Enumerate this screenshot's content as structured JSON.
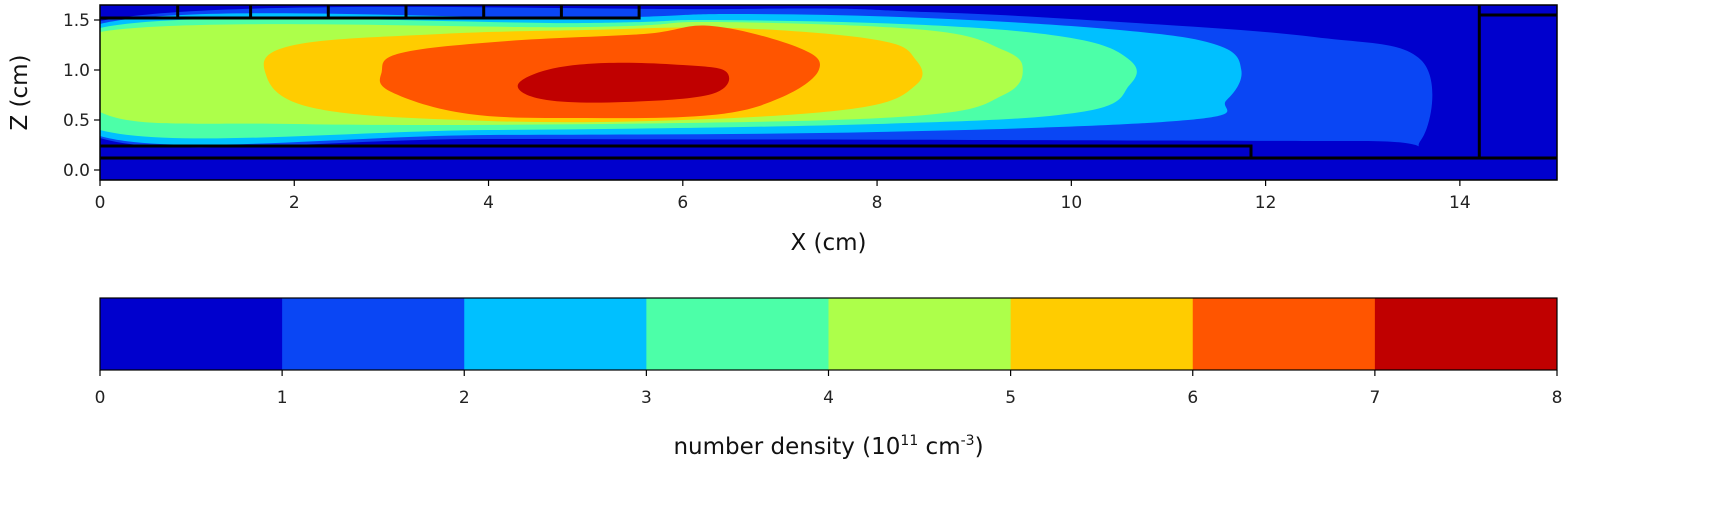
{
  "chart_data": [
    {
      "type": "heatmap",
      "subtype": "filled-contour",
      "xlabel": "X (cm)",
      "ylabel": "Z (cm)",
      "xlim": [
        0,
        15
      ],
      "ylim": [
        -0.1,
        1.65
      ],
      "xticks": [
        0,
        2,
        4,
        6,
        8,
        10,
        12,
        14
      ],
      "xtick_labels": [
        "0",
        "2",
        "4",
        "6",
        "8",
        "10",
        "12",
        "14"
      ],
      "yticks": [
        0.0,
        0.5,
        1.0,
        1.5
      ],
      "ytick_labels": [
        "0.0",
        "0.5",
        "1.0",
        "1.5"
      ],
      "grid": false,
      "background_level_color": "#0000cd",
      "contour_levels": [
        {
          "range": [
            1,
            2
          ],
          "color": "#0a46f4",
          "outline": [
            [
              0,
              1.49
            ],
            [
              6.5,
              1.61
            ],
            [
              8.5,
              1.58
            ],
            [
              10.5,
              1.48
            ],
            [
              12.5,
              1.33
            ],
            [
              13.6,
              1.1
            ],
            [
              13.6,
              0.3
            ],
            [
              13.0,
              0.29
            ],
            [
              9.0,
              0.3
            ],
            [
              4.0,
              0.31
            ],
            [
              0,
              0.32
            ]
          ]
        },
        {
          "range": [
            2,
            3
          ],
          "color": "#00c0ff",
          "outline": [
            [
              0,
              1.46
            ],
            [
              5.0,
              1.52
            ],
            [
              6.5,
              1.56
            ],
            [
              8.5,
              1.52
            ],
            [
              10.5,
              1.4
            ],
            [
              11.5,
              1.25
            ],
            [
              11.75,
              1.0
            ],
            [
              11.6,
              0.7
            ],
            [
              11.2,
              0.5
            ],
            [
              8.0,
              0.38
            ],
            [
              4.0,
              0.35
            ],
            [
              0,
              0.34
            ]
          ]
        },
        {
          "range": [
            3,
            4
          ],
          "color": "#4cffa8",
          "outline": [
            [
              0,
              1.42
            ],
            [
              5.0,
              1.47
            ],
            [
              6.3,
              1.5
            ],
            [
              8.5,
              1.45
            ],
            [
              10.0,
              1.32
            ],
            [
              10.6,
              1.1
            ],
            [
              10.6,
              0.85
            ],
            [
              10.1,
              0.58
            ],
            [
              8.0,
              0.46
            ],
            [
              4.0,
              0.4
            ],
            [
              0,
              0.4
            ]
          ]
        },
        {
          "range": [
            4,
            5
          ],
          "color": "#adff4a",
          "outline": [
            [
              0,
              1.38
            ],
            [
              5.0,
              1.43
            ],
            [
              6.3,
              1.48
            ],
            [
              8.5,
              1.4
            ],
            [
              9.3,
              1.2
            ],
            [
              9.5,
              1.0
            ],
            [
              9.3,
              0.75
            ],
            [
              8.5,
              0.55
            ],
            [
              6.0,
              0.47
            ],
            [
              2.0,
              0.46
            ],
            [
              0,
              0.58
            ]
          ]
        },
        {
          "range": [
            5,
            6
          ],
          "color": "#ffcc00",
          "outline": [
            [
              1.7,
              0.98
            ],
            [
              2.0,
              1.25
            ],
            [
              3.5,
              1.36
            ],
            [
              5.0,
              1.4
            ],
            [
              6.5,
              1.42
            ],
            [
              8.0,
              1.3
            ],
            [
              8.4,
              1.1
            ],
            [
              8.4,
              0.85
            ],
            [
              7.8,
              0.62
            ],
            [
              6.0,
              0.5
            ],
            [
              4.0,
              0.49
            ],
            [
              2.2,
              0.62
            ]
          ]
        },
        {
          "range": [
            6,
            7
          ],
          "color": "#ff5500",
          "outline": [
            [
              2.9,
              0.98
            ],
            [
              3.1,
              1.17
            ],
            [
              4.2,
              1.29
            ],
            [
              5.6,
              1.36
            ],
            [
              6.3,
              1.44
            ],
            [
              7.2,
              1.22
            ],
            [
              7.4,
              1.0
            ],
            [
              7.0,
              0.72
            ],
            [
              6.3,
              0.55
            ],
            [
              5.0,
              0.52
            ],
            [
              3.8,
              0.56
            ],
            [
              3.0,
              0.78
            ]
          ]
        },
        {
          "range": [
            7,
            8
          ],
          "color": "#c00000",
          "outline": [
            [
              4.3,
              0.84
            ],
            [
              4.6,
              1.0
            ],
            [
              5.2,
              1.07
            ],
            [
              6.0,
              1.05
            ],
            [
              6.45,
              0.98
            ],
            [
              6.3,
              0.76
            ],
            [
              5.4,
              0.68
            ],
            [
              4.6,
              0.7
            ]
          ]
        }
      ],
      "geometry_outlines": [
        [
          [
            0,
            1.52
          ],
          [
            5.55,
            1.52
          ],
          [
            5.55,
            1.65
          ]
        ],
        [
          [
            0.8,
            1.52
          ],
          [
            0.8,
            1.65
          ]
        ],
        [
          [
            1.55,
            1.52
          ],
          [
            1.55,
            1.65
          ]
        ],
        [
          [
            2.35,
            1.52
          ],
          [
            2.35,
            1.65
          ]
        ],
        [
          [
            3.15,
            1.52
          ],
          [
            3.15,
            1.65
          ]
        ],
        [
          [
            3.95,
            1.52
          ],
          [
            3.95,
            1.65
          ]
        ],
        [
          [
            4.75,
            1.52
          ],
          [
            4.75,
            1.65
          ]
        ],
        [
          [
            0,
            0.24
          ],
          [
            11.85,
            0.24
          ],
          [
            11.85,
            0.12
          ]
        ],
        [
          [
            0,
            0.12
          ],
          [
            15,
            0.12
          ]
        ],
        [
          [
            14.2,
            1.65
          ],
          [
            14.2,
            0.12
          ]
        ],
        [
          [
            14.2,
            1.55
          ],
          [
            15,
            1.55
          ]
        ]
      ]
    },
    {
      "type": "colorbar",
      "label_text": "number density (10",
      "label_sup": "11",
      "label_unit": "  cm",
      "label_unit_sup": "-3",
      "label_close": ")",
      "range": [
        0,
        8
      ],
      "ticks": [
        0,
        1,
        2,
        3,
        4,
        5,
        6,
        7,
        8
      ],
      "tick_labels": [
        "0",
        "1",
        "2",
        "3",
        "4",
        "5",
        "6",
        "7",
        "8"
      ],
      "colors": [
        "#0000cd",
        "#0a46f4",
        "#00c0ff",
        "#4cffa8",
        "#adff4a",
        "#ffcc00",
        "#ff5500",
        "#c00000"
      ]
    }
  ]
}
